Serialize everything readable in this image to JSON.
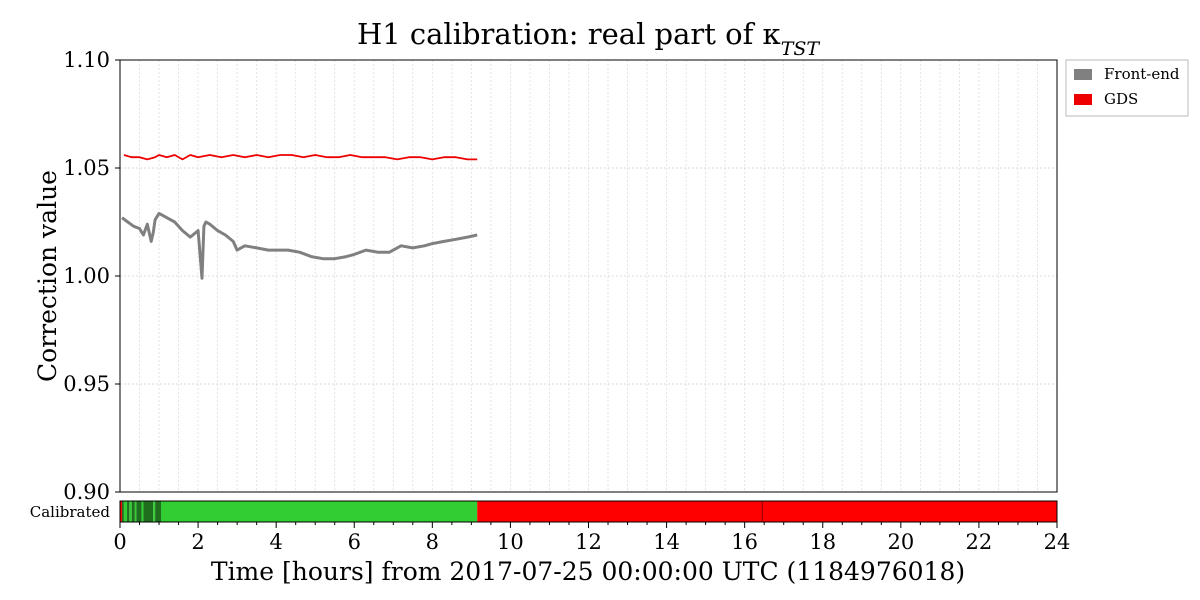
{
  "chart_data": {
    "type": "line",
    "title": "H1 calibration: real part of κ",
    "title_subscript": "TST",
    "xlabel": "Time [hours] from 2017-07-25 00:00:00 UTC (1184976018)",
    "ylabel": "Correction value",
    "xlim": [
      0,
      24
    ],
    "ylim": [
      0.9,
      1.1
    ],
    "x_ticks": [
      0,
      2,
      4,
      6,
      8,
      10,
      12,
      14,
      16,
      18,
      20,
      22,
      24
    ],
    "y_ticks": [
      "0.90",
      "0.95",
      "1.00",
      "1.05",
      "1.10"
    ],
    "grid": true,
    "legend_placement": "outside-top-right",
    "series": [
      {
        "name": "Front-end",
        "color": "#808080",
        "x": [
          0.05,
          0.2,
          0.35,
          0.5,
          0.6,
          0.7,
          0.8,
          0.85,
          0.9,
          1.0,
          1.1,
          1.2,
          1.4,
          1.6,
          1.8,
          2.0,
          2.1,
          2.15,
          2.2,
          2.3,
          2.5,
          2.7,
          2.9,
          3.0,
          3.2,
          3.5,
          3.8,
          4.0,
          4.3,
          4.6,
          4.9,
          5.2,
          5.5,
          5.8,
          6.0,
          6.3,
          6.6,
          6.9,
          7.2,
          7.5,
          7.8,
          8.0,
          8.3,
          8.6,
          8.9,
          9.15
        ],
        "values": [
          1.027,
          1.025,
          1.023,
          1.022,
          1.019,
          1.024,
          1.016,
          1.02,
          1.026,
          1.029,
          1.028,
          1.027,
          1.025,
          1.021,
          1.018,
          1.021,
          0.999,
          1.023,
          1.025,
          1.024,
          1.021,
          1.019,
          1.016,
          1.012,
          1.014,
          1.013,
          1.012,
          1.012,
          1.012,
          1.011,
          1.009,
          1.008,
          1.008,
          1.009,
          1.01,
          1.012,
          1.011,
          1.011,
          1.014,
          1.013,
          1.014,
          1.015,
          1.016,
          1.017,
          1.018,
          1.019
        ]
      },
      {
        "name": "GDS",
        "color": "#ee0000",
        "x": [
          0.1,
          0.3,
          0.5,
          0.7,
          0.9,
          1.0,
          1.2,
          1.4,
          1.6,
          1.8,
          2.0,
          2.3,
          2.6,
          2.9,
          3.2,
          3.5,
          3.8,
          4.1,
          4.4,
          4.7,
          5.0,
          5.3,
          5.6,
          5.9,
          6.2,
          6.5,
          6.8,
          7.1,
          7.4,
          7.7,
          8.0,
          8.3,
          8.6,
          8.9,
          9.15
        ],
        "values": [
          1.056,
          1.055,
          1.055,
          1.054,
          1.055,
          1.056,
          1.055,
          1.056,
          1.054,
          1.056,
          1.055,
          1.056,
          1.055,
          1.056,
          1.055,
          1.056,
          1.055,
          1.056,
          1.056,
          1.055,
          1.056,
          1.055,
          1.055,
          1.056,
          1.055,
          1.055,
          1.055,
          1.054,
          1.055,
          1.055,
          1.054,
          1.055,
          1.055,
          1.054,
          1.054
        ]
      }
    ],
    "status_bar": {
      "label": "Calibrated",
      "segments": [
        {
          "start": 0.0,
          "end": 0.05,
          "color": "#ff0000"
        },
        {
          "start": 0.05,
          "end": 0.1,
          "color": "#1e6e1e"
        },
        {
          "start": 0.1,
          "end": 0.18,
          "color": "#32cd32"
        },
        {
          "start": 0.18,
          "end": 0.24,
          "color": "#1e6e1e"
        },
        {
          "start": 0.24,
          "end": 0.3,
          "color": "#32cd32"
        },
        {
          "start": 0.3,
          "end": 0.38,
          "color": "#1e6e1e"
        },
        {
          "start": 0.38,
          "end": 0.42,
          "color": "#32cd32"
        },
        {
          "start": 0.42,
          "end": 0.55,
          "color": "#1e6e1e"
        },
        {
          "start": 0.55,
          "end": 0.6,
          "color": "#32cd32"
        },
        {
          "start": 0.6,
          "end": 0.85,
          "color": "#1e6e1e"
        },
        {
          "start": 0.85,
          "end": 0.9,
          "color": "#32cd32"
        },
        {
          "start": 0.9,
          "end": 1.05,
          "color": "#1e6e1e"
        },
        {
          "start": 1.05,
          "end": 9.15,
          "color": "#32cd32"
        },
        {
          "start": 9.15,
          "end": 24.0,
          "color": "#ff0000"
        }
      ]
    }
  }
}
